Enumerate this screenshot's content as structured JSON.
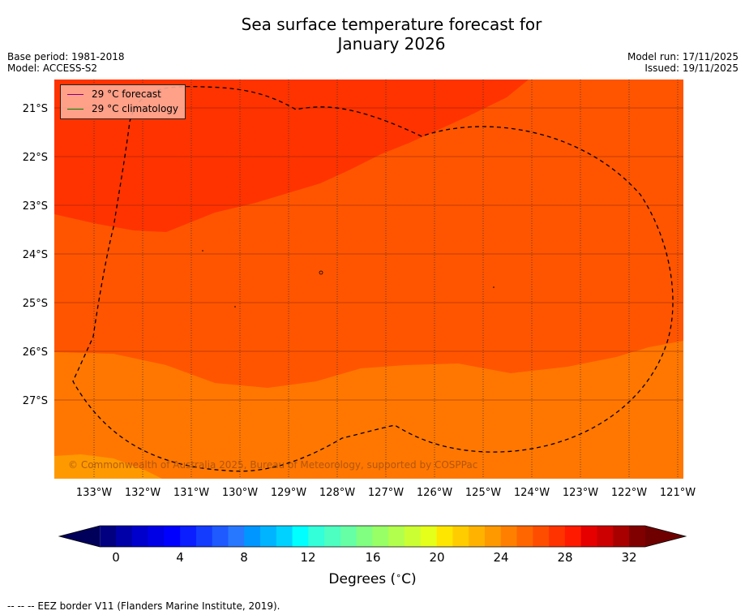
{
  "title_line1": "Sea surface temperature forecast for",
  "title_line2": "January 2026",
  "meta": {
    "base_period": "Base period: 1981-2018",
    "model": "Model: ACCESS-S2",
    "model_run": "Model run: 17/11/2025",
    "issued": "Issued: 19/11/2025"
  },
  "legend": {
    "forecast": "29 °C  forecast",
    "climatology": "29 °C  climatology",
    "forecast_color": "#800080",
    "climatology_color": "#008000"
  },
  "copyright": "© Commonwealth of Australia 2025, Bureau of Meteorology, supported by COSPPac",
  "footer": "--  --  -- EEZ border V11 (Flanders Marine Institute, 2019).",
  "chart_data": {
    "type": "heatmap",
    "variable": "Sea surface temperature",
    "units": "°C",
    "longitude_range": [
      -133.8,
      -120.9
    ],
    "latitude_range": [
      -28.6,
      -20.4
    ],
    "lon_tick_labels": [
      "133°W",
      "132°W",
      "131°W",
      "130°W",
      "129°W",
      "128°W",
      "127°W",
      "126°W",
      "125°W",
      "124°W",
      "123°W",
      "122°W",
      "121°W"
    ],
    "lon_ticks": [
      -133,
      -132,
      -131,
      -130,
      -129,
      -128,
      -127,
      -126,
      -125,
      -124,
      -123,
      -122,
      -121
    ],
    "lat_tick_labels": [
      "21°S",
      "22°S",
      "23°S",
      "24°S",
      "25°S",
      "26°S",
      "27°S"
    ],
    "lat_ticks": [
      -21,
      -22,
      -23,
      -24,
      -25,
      -26,
      -27
    ],
    "regions": [
      {
        "name": "north",
        "range_c": "29-30",
        "color": "#ff3300"
      },
      {
        "name": "central",
        "range_c": "28-29",
        "color": "#ff5500"
      },
      {
        "name": "south",
        "range_c": "27-28",
        "color": "#ff7700"
      },
      {
        "name": "southwest-corner",
        "range_c": "26-27",
        "color": "#ff9900"
      }
    ],
    "colorbar": {
      "label": "Degrees ($^\\circ$C)",
      "label_text": "Degrees (",
      "label_unit": "C)",
      "tick_labels": [
        "0",
        "4",
        "8",
        "12",
        "16",
        "20",
        "24",
        "28",
        "32"
      ],
      "ticks": [
        0,
        4,
        8,
        12,
        16,
        20,
        24,
        28,
        32
      ],
      "min": -1,
      "max": 33,
      "step": 1,
      "colors": [
        "#000080",
        "#0000a8",
        "#0000cc",
        "#0000e6",
        "#0000ff",
        "#0a1eff",
        "#143cff",
        "#1e5aff",
        "#2878ff",
        "#0096ff",
        "#00b4ff",
        "#00d2ff",
        "#00ffff",
        "#33ffd9",
        "#4dffc0",
        "#66ffa6",
        "#80ff80",
        "#99ff66",
        "#b3ff4d",
        "#ccff33",
        "#e6ff1a",
        "#ffe600",
        "#ffcc00",
        "#ffb300",
        "#ff9900",
        "#ff8000",
        "#ff6600",
        "#ff4d00",
        "#ff3300",
        "#ff1a00",
        "#e60000",
        "#cc0000",
        "#a80000",
        "#800000"
      ],
      "extend_low_color": "#00005a",
      "extend_high_color": "#6e0000"
    }
  }
}
